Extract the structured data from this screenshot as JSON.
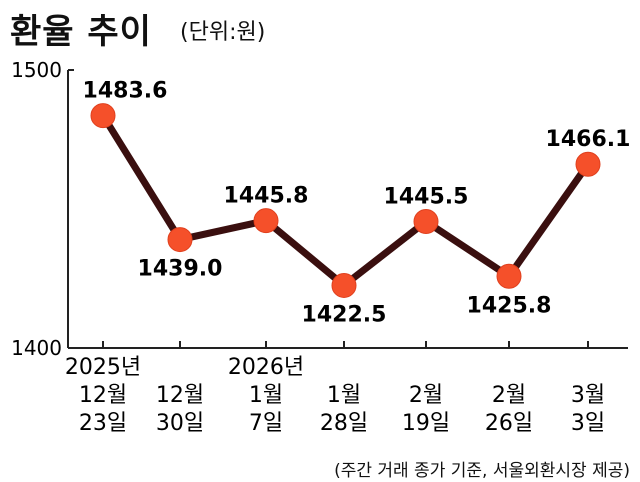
{
  "title": "환율 추이",
  "unit": "(단위:원)",
  "source": "(주간 거래 종가 기준, 서울외환시장 제공)",
  "chart_data": {
    "type": "line",
    "x": [
      [
        "2025년",
        "12월",
        "23일"
      ],
      [
        "12월",
        "30일"
      ],
      [
        "2026년",
        "1월",
        "7일"
      ],
      [
        "1월",
        "28일"
      ],
      [
        "2월",
        "19일"
      ],
      [
        "2월",
        "26일"
      ],
      [
        "3월",
        "3일"
      ]
    ],
    "values": [
      1483.6,
      1439.0,
      1445.8,
      1422.5,
      1445.5,
      1425.8,
      1466.1
    ],
    "data_labels": [
      "1483.6",
      "1439.0",
      "1445.8",
      "1422.5",
      "1445.5",
      "1425.8",
      "1466.1"
    ],
    "label_positions": [
      "above",
      "below",
      "above",
      "below",
      "above",
      "below",
      "above"
    ],
    "yticks": [
      "1500",
      "1400"
    ],
    "ylim": [
      1400,
      1500
    ],
    "grid": false,
    "line_color": "#3a0f0f",
    "marker_color": "#f5502a"
  }
}
